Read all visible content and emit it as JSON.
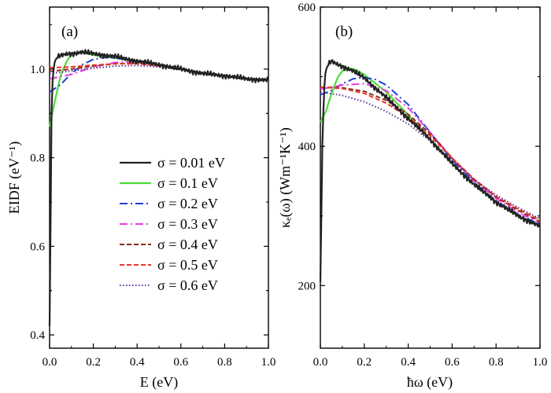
{
  "chart_data": [
    {
      "type": "line",
      "panel_label": "(a)",
      "xlabel": "E (eV)",
      "ylabel": "EIDF (eV⁻¹)",
      "xlim": [
        0.0,
        1.0
      ],
      "ylim": [
        0.37,
        1.14
      ],
      "xticks": [
        0.0,
        0.2,
        0.4,
        0.6,
        0.8,
        1.0
      ],
      "xtick_labels": [
        "0.0",
        "0.2",
        "0.4",
        "0.6",
        "0.8",
        "1.0"
      ],
      "yticks": [
        0.4,
        0.6,
        0.8,
        1.0
      ],
      "ytick_labels": [
        "0.4",
        "0.6",
        "0.8",
        "1.0"
      ],
      "legend_placement": "lower-right",
      "series": [
        {
          "name": "σ = 0.01 eV",
          "color": "#222222",
          "style": "solid",
          "noisy": true,
          "x": [
            0.0,
            0.01,
            0.02,
            0.03,
            0.05,
            0.08,
            0.1,
            0.15,
            0.2,
            0.3,
            0.4,
            0.5,
            0.6,
            0.7,
            0.8,
            0.9,
            1.0
          ],
          "y": [
            0.42,
            0.95,
            1.01,
            1.025,
            1.03,
            1.035,
            1.035,
            1.038,
            1.035,
            1.028,
            1.018,
            1.01,
            1.0,
            0.99,
            0.985,
            0.978,
            0.975
          ]
        },
        {
          "name": "σ = 0.1 eV",
          "color": "#4ddb3a",
          "style": "solid",
          "noisy": false,
          "x": [
            0.0,
            0.025,
            0.05,
            0.08,
            0.1,
            0.13,
            0.16,
            0.2,
            0.3,
            0.4,
            0.5,
            0.6,
            0.7,
            0.8,
            0.9,
            1.0
          ],
          "y": [
            0.87,
            0.93,
            0.985,
            1.02,
            1.032,
            1.038,
            1.036,
            1.032,
            1.025,
            1.017,
            1.01,
            1.0,
            0.99,
            0.985,
            0.978,
            0.975
          ]
        },
        {
          "name": "σ = 0.2 eV",
          "color": "#1f3fd6",
          "style": "dashdot",
          "noisy": false,
          "x": [
            0.0,
            0.05,
            0.1,
            0.15,
            0.2,
            0.25,
            0.3,
            0.4,
            0.5,
            0.6,
            0.7,
            0.8,
            0.9,
            1.0
          ],
          "y": [
            0.948,
            0.965,
            0.99,
            1.01,
            1.022,
            1.026,
            1.025,
            1.018,
            1.01,
            1.0,
            0.99,
            0.985,
            0.978,
            0.975
          ]
        },
        {
          "name": "σ = 0.3 eV",
          "color": "#e83ce0",
          "style": "dashdot",
          "noisy": false,
          "x": [
            0.0,
            0.1,
            0.2,
            0.3,
            0.4,
            0.5,
            0.6,
            0.7,
            0.8,
            0.9,
            1.0
          ],
          "y": [
            0.978,
            0.988,
            1.005,
            1.015,
            1.017,
            1.01,
            1.0,
            0.99,
            0.985,
            0.978,
            0.975
          ]
        },
        {
          "name": "σ = 0.4 eV",
          "color": "#8b2a1a",
          "style": "dash",
          "noisy": false,
          "x": [
            0.0,
            0.1,
            0.2,
            0.3,
            0.4,
            0.5,
            0.6,
            0.7,
            0.8,
            0.9,
            1.0
          ],
          "y": [
            0.995,
            1.0,
            1.007,
            1.012,
            1.013,
            1.008,
            1.0,
            0.99,
            0.985,
            0.978,
            0.975
          ]
        },
        {
          "name": "σ = 0.5 eV",
          "color": "#e8342b",
          "style": "dash",
          "noisy": false,
          "x": [
            0.0,
            0.1,
            0.2,
            0.3,
            0.4,
            0.5,
            0.6,
            0.7,
            0.8,
            0.9,
            1.0
          ],
          "y": [
            1.003,
            1.005,
            1.009,
            1.012,
            1.012,
            1.007,
            1.0,
            0.992,
            0.985,
            0.978,
            0.975
          ]
        },
        {
          "name": "σ = 0.6 eV",
          "color": "#5a2d91",
          "style": "dot",
          "noisy": false,
          "x": [
            0.0,
            0.1,
            0.2,
            0.3,
            0.4,
            0.5,
            0.6,
            0.7,
            0.8,
            0.9,
            1.0
          ],
          "y": [
            0.99,
            0.996,
            1.002,
            1.007,
            1.008,
            1.005,
            0.999,
            0.992,
            0.985,
            0.978,
            0.975
          ]
        }
      ]
    },
    {
      "type": "line",
      "panel_label": "(b)",
      "xlabel": "ħω (eV)",
      "ylabel": "κₑ(ω) (Wm⁻¹K⁻¹)",
      "xlim": [
        0.0,
        1.0
      ],
      "ylim": [
        110,
        600
      ],
      "xticks": [
        0.0,
        0.2,
        0.4,
        0.6,
        0.8,
        1.0
      ],
      "xtick_labels": [
        "0.0",
        "0.2",
        "0.4",
        "0.6",
        "0.8",
        "1.0"
      ],
      "yticks": [
        200,
        400,
        600
      ],
      "ytick_labels": [
        "200",
        "400",
        "600"
      ],
      "series": [
        {
          "name": "σ = 0.01 eV",
          "color": "#222222",
          "style": "solid",
          "noisy": true,
          "x": [
            0.0,
            0.01,
            0.02,
            0.03,
            0.05,
            0.1,
            0.15,
            0.2,
            0.3,
            0.4,
            0.5,
            0.6,
            0.7,
            0.8,
            0.9,
            1.0
          ],
          "y": [
            205,
            420,
            500,
            515,
            522,
            515,
            508,
            498,
            470,
            440,
            410,
            375,
            345,
            320,
            300,
            285
          ]
        },
        {
          "name": "σ = 0.1 eV",
          "color": "#4ddb3a",
          "style": "solid",
          "noisy": false,
          "x": [
            0.0,
            0.025,
            0.05,
            0.08,
            0.1,
            0.13,
            0.16,
            0.2,
            0.3,
            0.4,
            0.5,
            0.6,
            0.7,
            0.8,
            0.9,
            1.0
          ],
          "y": [
            435,
            450,
            475,
            500,
            508,
            512,
            510,
            503,
            478,
            445,
            410,
            375,
            345,
            320,
            300,
            287
          ]
        },
        {
          "name": "σ = 0.2 eV",
          "color": "#1f3fd6",
          "style": "dashdot",
          "noisy": false,
          "x": [
            0.0,
            0.05,
            0.1,
            0.15,
            0.2,
            0.25,
            0.3,
            0.4,
            0.5,
            0.6,
            0.7,
            0.8,
            0.9,
            1.0
          ],
          "y": [
            474,
            480,
            490,
            497,
            499,
            496,
            488,
            460,
            420,
            380,
            348,
            322,
            302,
            288
          ]
        },
        {
          "name": "σ = 0.3 eV",
          "color": "#e83ce0",
          "style": "dashdot",
          "noisy": false,
          "x": [
            0.0,
            0.1,
            0.2,
            0.3,
            0.4,
            0.5,
            0.6,
            0.7,
            0.8,
            0.9,
            1.0
          ],
          "y": [
            482,
            488,
            490,
            480,
            455,
            420,
            383,
            350,
            325,
            305,
            290
          ]
        },
        {
          "name": "σ = 0.4 eV",
          "color": "#8b2a1a",
          "style": "dash",
          "noisy": false,
          "x": [
            0.0,
            0.1,
            0.2,
            0.3,
            0.4,
            0.5,
            0.6,
            0.7,
            0.8,
            0.9,
            1.0
          ],
          "y": [
            485,
            484,
            479,
            466,
            446,
            418,
            383,
            352,
            327,
            308,
            292
          ]
        },
        {
          "name": "σ = 0.5 eV",
          "color": "#e8342b",
          "style": "dash",
          "noisy": false,
          "x": [
            0.0,
            0.1,
            0.2,
            0.3,
            0.4,
            0.5,
            0.6,
            0.7,
            0.8,
            0.9,
            1.0
          ],
          "y": [
            485,
            483,
            476,
            462,
            442,
            415,
            383,
            353,
            328,
            310,
            294
          ]
        },
        {
          "name": "σ = 0.6 eV",
          "color": "#5a2d91",
          "style": "dot",
          "noisy": false,
          "x": [
            0.0,
            0.1,
            0.2,
            0.3,
            0.4,
            0.5,
            0.6,
            0.7,
            0.8,
            0.9,
            1.0
          ],
          "y": [
            478,
            473,
            464,
            450,
            432,
            408,
            380,
            352,
            330,
            312,
            296
          ]
        }
      ]
    }
  ]
}
